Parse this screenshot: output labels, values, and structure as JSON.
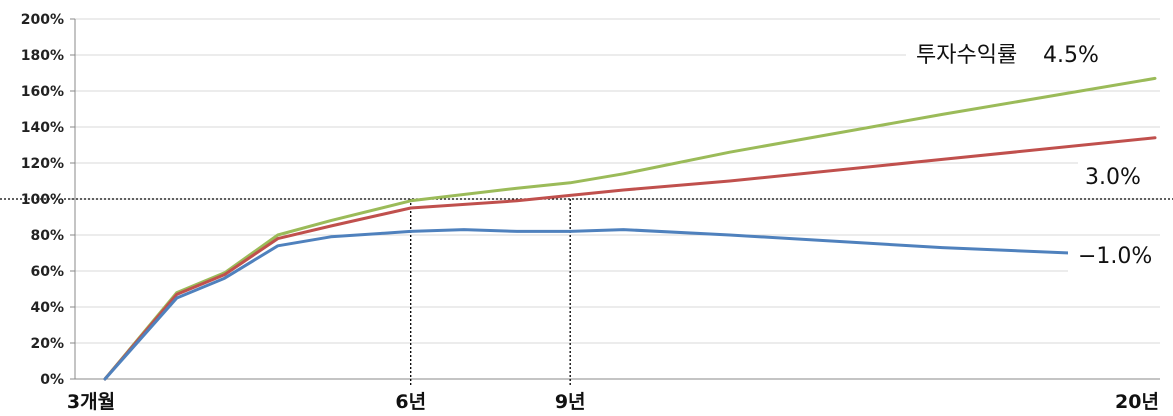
{
  "chart_data": {
    "type": "line",
    "title": "",
    "xlabel": "",
    "ylabel": "",
    "ylim": [
      0,
      200
    ],
    "yticks": [
      "0%",
      "20%",
      "40%",
      "60%",
      "80%",
      "100%",
      "120%",
      "140%",
      "160%",
      "180%",
      "200%"
    ],
    "x_labels": [
      "3개월",
      "6년",
      "9년",
      "20년"
    ],
    "x_range_years": [
      0.25,
      20
    ],
    "grid": true,
    "reference_line": {
      "y": 100
    },
    "markers": [
      {
        "label": "6년",
        "x": 6,
        "y": 100
      },
      {
        "label": "9년",
        "x": 9,
        "y": 100
      }
    ],
    "legend_title": "투자수익률",
    "series": [
      {
        "name": "4.5%",
        "color": "#9BBB59",
        "x": [
          0.25,
          1.6,
          2.5,
          3.5,
          4.5,
          6,
          8,
          9,
          10,
          12,
          16,
          20
        ],
        "y": [
          0,
          48,
          59,
          80,
          88,
          99,
          106,
          109,
          114,
          126,
          147,
          167
        ]
      },
      {
        "name": "3.0%",
        "color": "#C0504D",
        "x": [
          0.25,
          1.6,
          2.5,
          3.5,
          4.5,
          6,
          8,
          9,
          10,
          12,
          16,
          20
        ],
        "y": [
          0,
          47,
          58,
          78,
          85,
          95,
          99,
          102,
          105,
          110,
          122,
          134
        ]
      },
      {
        "name": "−1.0%",
        "color": "#4F81BD",
        "x": [
          0.25,
          1.6,
          2.5,
          3.5,
          4.5,
          5.5,
          6,
          7,
          8,
          9,
          10,
          12,
          16,
          20
        ],
        "y": [
          0,
          45,
          56,
          74,
          79,
          81,
          82,
          83,
          82,
          82,
          83,
          80,
          73,
          68
        ]
      }
    ]
  }
}
